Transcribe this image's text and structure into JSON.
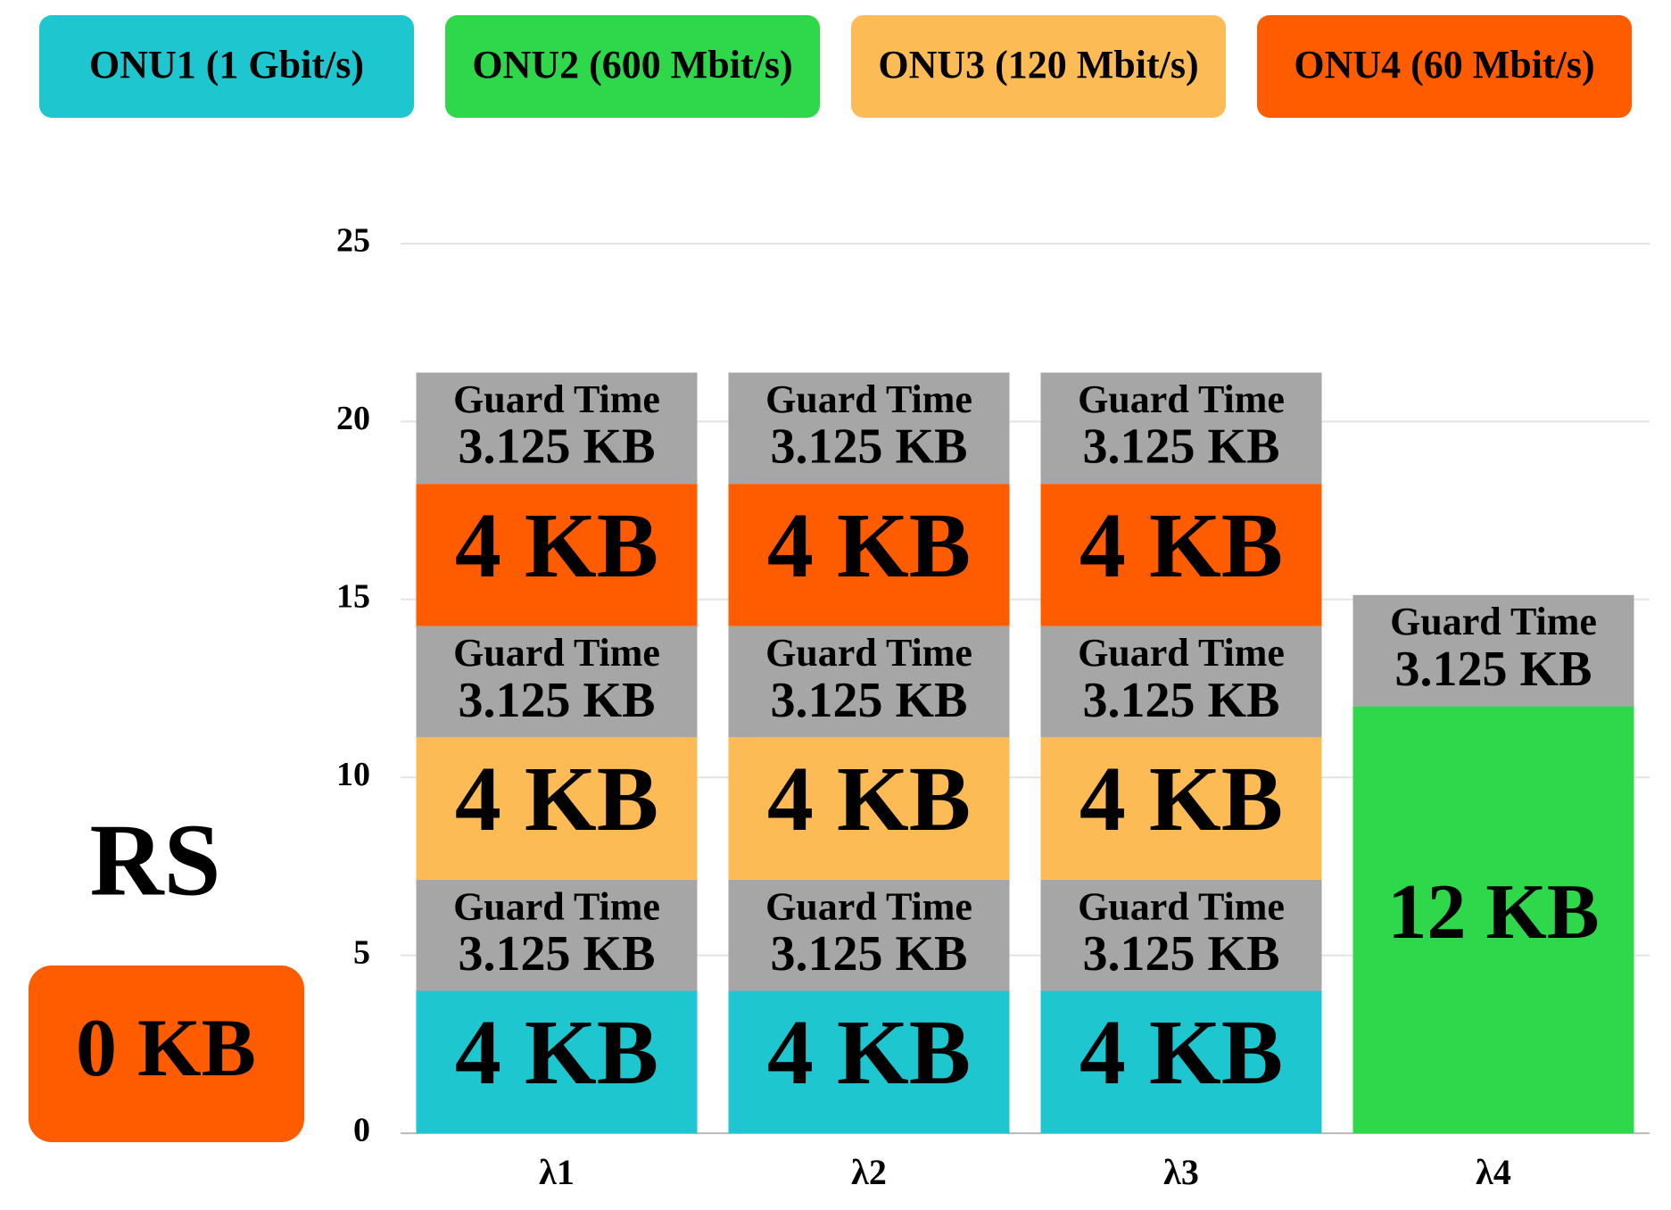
{
  "chart_data": {
    "type": "stacked_bar",
    "categories": [
      "λ1",
      "λ2",
      "λ3",
      "λ4"
    ],
    "ylim": [
      0,
      25
    ],
    "yticks": [
      0,
      5,
      10,
      15,
      20,
      25
    ],
    "grid": true,
    "series": [
      {
        "name": "ONU1 (1 Gbit/s)",
        "color": "#1ec6d0",
        "values": [
          4,
          4,
          4,
          null
        ],
        "value_labels": [
          "4 KB",
          "4 KB",
          "4 KB",
          null
        ]
      },
      {
        "name": "ONU2 (600 Mbit/s)",
        "color": "#2ed84a",
        "values": [
          null,
          null,
          null,
          12
        ],
        "value_labels": [
          null,
          null,
          null,
          "12 KB"
        ]
      },
      {
        "name": "Guard Time",
        "color": "#a6a6a6",
        "in_legend": false,
        "values": [
          3.125,
          3.125,
          3.125,
          3.125
        ],
        "value_labels": [
          "3.125 KB",
          "3.125 KB",
          "3.125 KB",
          "3.125 KB"
        ]
      },
      {
        "name": "ONU3 (120 Mbit/s)",
        "color": "#fdbb55",
        "values": [
          4,
          4,
          4,
          null
        ],
        "value_labels": [
          "4 KB",
          "4 KB",
          "4 KB",
          null
        ]
      },
      {
        "name": "Guard Time",
        "color": "#a6a6a6",
        "in_legend": false,
        "values": [
          3.125,
          3.125,
          3.125,
          null
        ],
        "value_labels": [
          "3.125 KB",
          "3.125 KB",
          "3.125 KB",
          null
        ]
      },
      {
        "name": "ONU4 (60 Mbit/s)",
        "color": "#ff5c00",
        "values": [
          4,
          4,
          4,
          null
        ],
        "value_labels": [
          "4 KB",
          "4 KB",
          "4 KB",
          null
        ]
      },
      {
        "name": "Guard Time",
        "color": "#a6a6a6",
        "in_legend": false,
        "values": [
          3.125,
          3.125,
          3.125,
          null
        ],
        "value_labels": [
          "3.125 KB",
          "3.125 KB",
          "3.125 KB",
          null
        ]
      }
    ],
    "annotation": {
      "title": "RS",
      "text": "0 KB",
      "color": "#ff5c00"
    }
  }
}
